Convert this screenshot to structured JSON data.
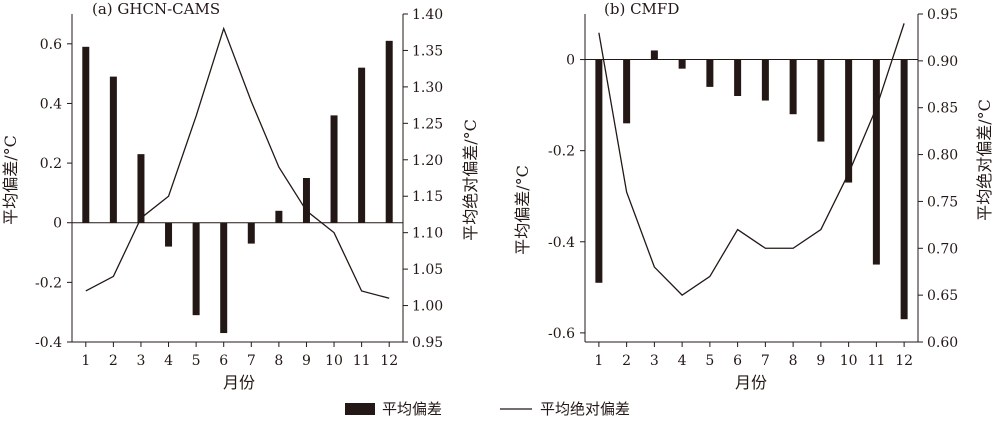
{
  "legend": {
    "bar_label": "平均偏差",
    "line_label": "平均绝对偏差"
  },
  "colors": {
    "bar": "#231815",
    "line": "#231815",
    "axis": "#231815"
  },
  "chart_data": [
    {
      "type": "bar",
      "title": "(a) GHCN-CAMS",
      "xlabel": "月份",
      "ylabel": "平均偏差/°C",
      "y2label": "平均绝对偏差/°C",
      "categories": [
        "1",
        "2",
        "3",
        "4",
        "5",
        "6",
        "7",
        "8",
        "9",
        "10",
        "11",
        "12"
      ],
      "ylim": [
        -0.4,
        0.7
      ],
      "yticks": [
        "-0.4",
        "-0.2",
        "0",
        "0.2",
        "0.4",
        "0.6"
      ],
      "y2lim": [
        0.95,
        1.4
      ],
      "y2ticks": [
        "0.95",
        "1.00",
        "1.05",
        "1.10",
        "1.15",
        "1.20",
        "1.25",
        "1.30",
        "1.35",
        "1.40"
      ],
      "series": [
        {
          "name": "平均偏差",
          "type": "bar",
          "axis": "left",
          "values": [
            0.59,
            0.49,
            0.23,
            -0.08,
            -0.31,
            -0.37,
            -0.07,
            0.04,
            0.15,
            0.36,
            0.52,
            0.61
          ]
        },
        {
          "name": "平均绝对偏差",
          "type": "line",
          "axis": "right",
          "values": [
            1.02,
            1.04,
            1.12,
            1.15,
            1.26,
            1.38,
            1.28,
            1.19,
            1.13,
            1.1,
            1.02,
            1.01
          ]
        }
      ],
      "grid": false,
      "legend_position": "bottom-center"
    },
    {
      "type": "bar",
      "title": "(b) CMFD",
      "xlabel": "月份",
      "ylabel": "平均偏差/°C",
      "y2label": "平均绝对偏差/°C",
      "categories": [
        "1",
        "2",
        "3",
        "4",
        "5",
        "6",
        "7",
        "8",
        "9",
        "10",
        "11",
        "12"
      ],
      "ylim": [
        -0.62,
        0.1
      ],
      "yticks": [
        "-0.6",
        "-0.4",
        "-0.2",
        "0"
      ],
      "y2lim": [
        0.6,
        0.95
      ],
      "y2ticks": [
        "0.60",
        "0.65",
        "0.70",
        "0.75",
        "0.80",
        "0.85",
        "0.90",
        "0.95"
      ],
      "series": [
        {
          "name": "平均偏差",
          "type": "bar",
          "axis": "left",
          "values": [
            -0.49,
            -0.14,
            0.02,
            -0.02,
            -0.06,
            -0.08,
            -0.09,
            -0.12,
            -0.18,
            -0.27,
            -0.45,
            -0.57
          ]
        },
        {
          "name": "平均绝对偏差",
          "type": "line",
          "axis": "right",
          "values": [
            0.93,
            0.76,
            0.68,
            0.65,
            0.67,
            0.72,
            0.7,
            0.7,
            0.72,
            0.78,
            0.85,
            0.94
          ]
        }
      ],
      "grid": false,
      "legend_position": "bottom-center"
    }
  ]
}
